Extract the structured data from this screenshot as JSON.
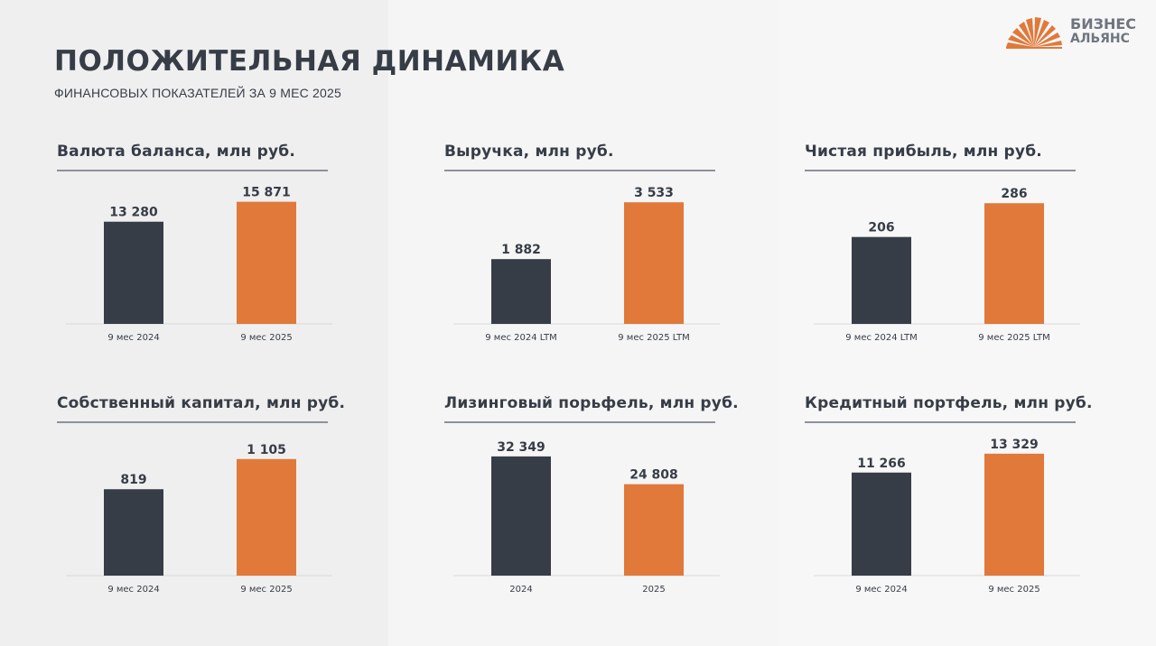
{
  "header": {
    "title": "ПОЛОЖИТЕЛЬНАЯ ДИНАМИКА",
    "subtitle": "ФИНАНСОВЫХ ПОКАЗАТЕЛЕЙ ЗА 9 МЕС 2025"
  },
  "logo": {
    "line1": "БИЗНЕС",
    "line2": "АЛЬЯНС"
  },
  "colors": {
    "dark": "#373d47",
    "accent": "#e0793a",
    "axis": "#d7d9dd"
  },
  "chart_data": [
    {
      "type": "bar",
      "title": "Валюта баланса, млн руб.",
      "categories": [
        "9 мес 2024",
        "9 мес 2025"
      ],
      "values": [
        13280,
        15871
      ],
      "labels": [
        "13 280",
        "15 871"
      ],
      "ylim": [
        0,
        17000
      ]
    },
    {
      "type": "bar",
      "title": "Выручка, млн руб.",
      "categories": [
        "9 мес 2024 LTM",
        "9 мес 2025 LTM"
      ],
      "values": [
        1882,
        3533
      ],
      "labels": [
        "1 882",
        "3 533"
      ],
      "ylim": [
        0,
        3800
      ]
    },
    {
      "type": "bar",
      "title": "Чистая прибыль, млн руб.",
      "categories": [
        "9 мес 2024 LTM",
        "9 мес 2025 LTM"
      ],
      "values": [
        206,
        286
      ],
      "labels": [
        "206",
        "286"
      ],
      "ylim": [
        0,
        310
      ]
    },
    {
      "type": "bar",
      "title": "Собственный капитал, млн руб.",
      "categories": [
        "9 мес 2024",
        "9 мес 2025"
      ],
      "values": [
        819,
        1105
      ],
      "labels": [
        "819",
        "1 105"
      ],
      "ylim": [
        0,
        1240
      ]
    },
    {
      "type": "bar",
      "title": "Лизинговый порьфель, млн руб.",
      "categories": [
        "2024",
        "2025"
      ],
      "values": [
        32349,
        24808
      ],
      "labels": [
        "32 349",
        "24 808"
      ],
      "ylim": [
        0,
        35500
      ]
    },
    {
      "type": "bar",
      "title": "Кредитный портфель, млн руб.",
      "categories": [
        "9 мес 2024",
        "9 мес 2025"
      ],
      "values": [
        11266,
        13329
      ],
      "labels": [
        "11 266",
        "13 329"
      ],
      "ylim": [
        0,
        14300
      ]
    }
  ]
}
